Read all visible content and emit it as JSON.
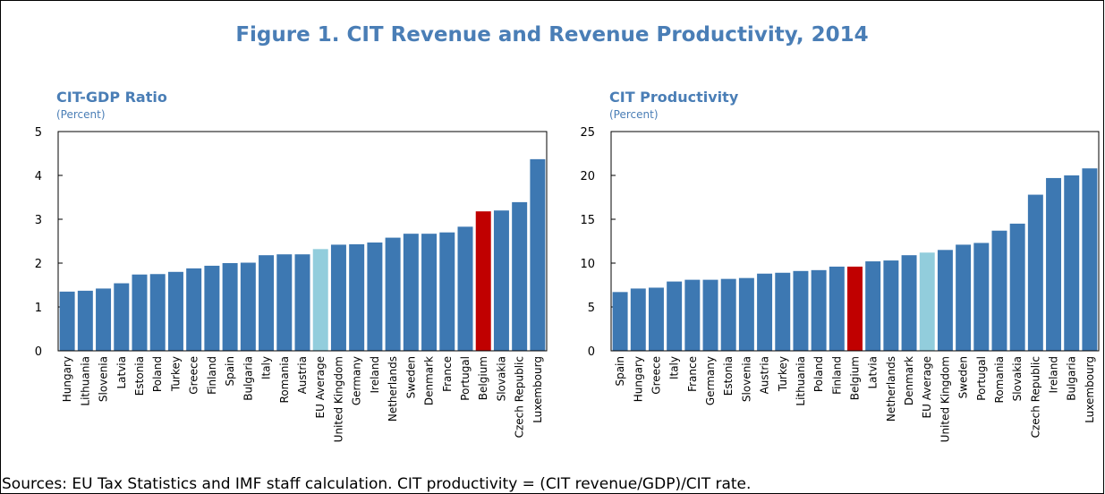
{
  "title": "Figure 1. CIT Revenue and Revenue Productivity, 2014",
  "source": "Sources: EU Tax Statistics and IMF staff calculation. CIT productivity = (CIT revenue/GDP)/CIT rate.",
  "chart_data": [
    {
      "type": "bar",
      "title": "CIT-GDP Ratio",
      "subtitle": "(Percent)",
      "categories": [
        "Hungary",
        "Lithuania",
        "Slovenia",
        "Latvia",
        "Estonia",
        "Poland",
        "Turkey",
        "Greece",
        "Finland",
        "Spain",
        "Bulgaria",
        "Italy",
        "Romania",
        "Austria",
        "EU Average",
        "United Kingdom",
        "Germany",
        "Ireland",
        "Netherlands",
        "Sweden",
        "Denmark",
        "France",
        "Portugal",
        "Belgium",
        "Slovakia",
        "Czech Republic",
        "Luxembourg"
      ],
      "values": [
        1.35,
        1.37,
        1.42,
        1.54,
        1.74,
        1.75,
        1.8,
        1.88,
        1.94,
        2.0,
        2.01,
        2.18,
        2.2,
        2.2,
        2.32,
        2.42,
        2.43,
        2.47,
        2.58,
        2.67,
        2.67,
        2.7,
        2.83,
        3.18,
        3.2,
        3.39,
        4.37
      ],
      "colors": [
        "#3d78b2",
        "#3d78b2",
        "#3d78b2",
        "#3d78b2",
        "#3d78b2",
        "#3d78b2",
        "#3d78b2",
        "#3d78b2",
        "#3d78b2",
        "#3d78b2",
        "#3d78b2",
        "#3d78b2",
        "#3d78b2",
        "#3d78b2",
        "#92cddc",
        "#3d78b2",
        "#3d78b2",
        "#3d78b2",
        "#3d78b2",
        "#3d78b2",
        "#3d78b2",
        "#3d78b2",
        "#3d78b2",
        "#c00000",
        "#3d78b2",
        "#3d78b2",
        "#3d78b2"
      ],
      "ylim": [
        0,
        5
      ],
      "yticks": [
        0,
        1,
        2,
        3,
        4,
        5
      ]
    },
    {
      "type": "bar",
      "title": "CIT Productivity",
      "subtitle": "(Percent)",
      "categories": [
        "Spain",
        "Hungary",
        "Greece",
        "Italy",
        "France",
        "Germany",
        "Estonia",
        "Slovenia",
        "Austria",
        "Turkey",
        "Lithuania",
        "Poland",
        "Finland",
        "Belgium",
        "Latvia",
        "Netherlands",
        "Denmark",
        "EU Average",
        "United Kingdom",
        "Sweden",
        "Portugal",
        "Romania",
        "Slovakia",
        "Czech Republic",
        "Ireland",
        "Bulgaria",
        "Luxembourg"
      ],
      "values": [
        6.7,
        7.1,
        7.2,
        7.9,
        8.1,
        8.1,
        8.2,
        8.3,
        8.8,
        8.9,
        9.1,
        9.2,
        9.6,
        9.6,
        10.2,
        10.3,
        10.9,
        11.2,
        11.5,
        12.1,
        12.3,
        13.7,
        14.5,
        17.8,
        19.7,
        20.0,
        20.8
      ],
      "colors": [
        "#3d78b2",
        "#3d78b2",
        "#3d78b2",
        "#3d78b2",
        "#3d78b2",
        "#3d78b2",
        "#3d78b2",
        "#3d78b2",
        "#3d78b2",
        "#3d78b2",
        "#3d78b2",
        "#3d78b2",
        "#3d78b2",
        "#c00000",
        "#3d78b2",
        "#3d78b2",
        "#3d78b2",
        "#92cddc",
        "#3d78b2",
        "#3d78b2",
        "#3d78b2",
        "#3d78b2",
        "#3d78b2",
        "#3d78b2",
        "#3d78b2",
        "#3d78b2",
        "#3d78b2"
      ],
      "ylim": [
        0,
        25
      ],
      "yticks": [
        0,
        5,
        10,
        15,
        20,
        25
      ]
    }
  ]
}
